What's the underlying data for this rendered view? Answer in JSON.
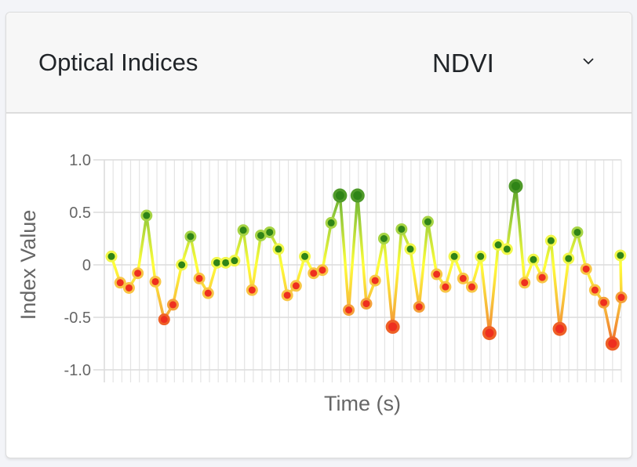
{
  "card": {
    "title": "Optical Indices",
    "selector": {
      "selected": "NDVI",
      "icon": "chevron-down-icon"
    }
  },
  "colors": {
    "page_bg": "#f3f4f8",
    "header_bg": "#f7f7f7",
    "grid": "#e2e2e2",
    "axis_text": "#666666",
    "high": "#3d8b1f",
    "mid": "#f5f542",
    "low": "#e8431f"
  },
  "chart_data": {
    "type": "line",
    "title": "",
    "xlabel": "Time (s)",
    "ylabel": "Index Value",
    "ylim": [
      -1.0,
      1.0
    ],
    "yticks": [
      "1.0",
      "0.5",
      "0",
      "-0.5",
      "-1.0"
    ],
    "ytick_values": [
      1.0,
      0.5,
      0,
      -0.5,
      -1.0
    ],
    "grid": true,
    "legend": null,
    "series": [
      {
        "name": "NDVI",
        "values": [
          0.08,
          -0.17,
          -0.22,
          -0.08,
          0.47,
          -0.16,
          -0.52,
          -0.38,
          0.0,
          0.27,
          -0.13,
          -0.27,
          0.02,
          0.02,
          0.04,
          0.33,
          -0.24,
          0.28,
          0.31,
          0.15,
          -0.29,
          -0.2,
          0.08,
          -0.08,
          -0.05,
          0.4,
          0.66,
          -0.43,
          0.66,
          -0.37,
          -0.15,
          0.25,
          -0.59,
          0.34,
          0.15,
          -0.4,
          0.41,
          -0.09,
          -0.21,
          0.08,
          -0.13,
          -0.21,
          0.08,
          -0.65,
          0.19,
          0.15,
          0.75,
          -0.17,
          0.05,
          -0.12,
          0.23,
          -0.61,
          0.06,
          0.31,
          -0.04,
          -0.24,
          -0.36,
          -0.75,
          -0.31,
          0.09
        ]
      }
    ]
  }
}
